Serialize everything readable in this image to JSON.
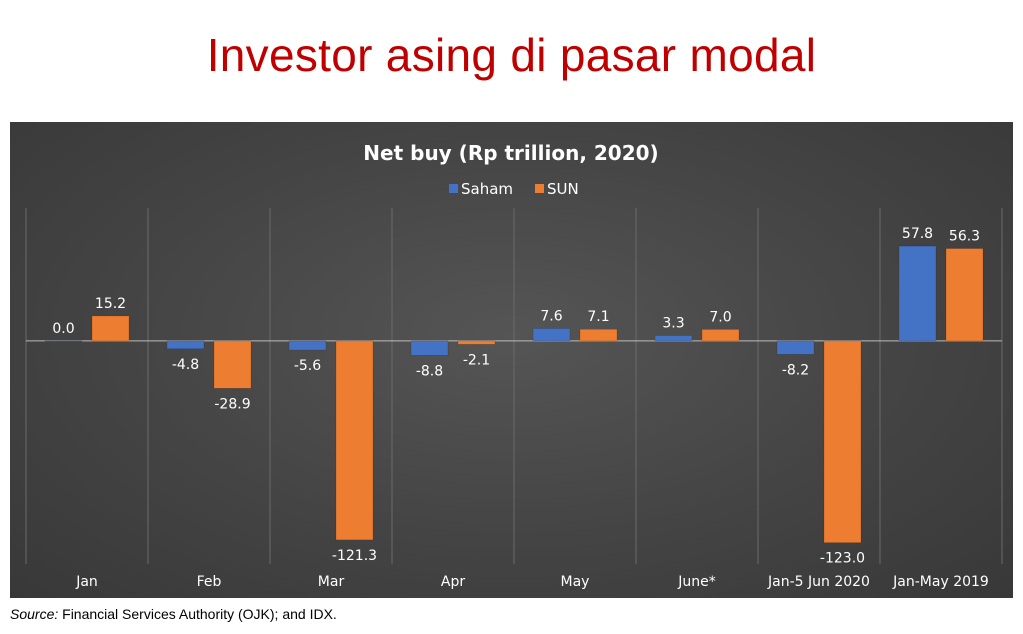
{
  "page": {
    "title": "Investor asing di pasar modal",
    "source_prefix": "Source:",
    "source_text": " Financial Services Authority (OJK); and IDX."
  },
  "chart_data": {
    "type": "bar",
    "title": "Net buy (Rp trillion, 2020)",
    "xlabel": "",
    "ylabel": "",
    "categories": [
      "Jan",
      "Feb",
      "Mar",
      "Apr",
      "May",
      "June*",
      "Jan-5 Jun 2020",
      "Jan-May 2019"
    ],
    "series": [
      {
        "name": "Saham",
        "color": "#4472c4",
        "values": [
          0.0,
          -4.8,
          -5.6,
          -8.8,
          7.6,
          3.3,
          -8.2,
          57.8
        ],
        "labels": [
          "0.0",
          "-4.8",
          "-5.6",
          "-8.8",
          "7.6",
          "3.3",
          "-8.2",
          "57.8"
        ]
      },
      {
        "name": "SUN",
        "color": "#ed7d31",
        "values": [
          15.2,
          -28.9,
          -121.3,
          -2.1,
          7.1,
          7.0,
          -123.0,
          56.3
        ],
        "labels": [
          "15.2",
          "-28.9",
          "-121.3",
          "-2.1",
          "7.1",
          "7.0",
          "-123.0",
          "56.3"
        ]
      }
    ],
    "ylim": [
      -136,
      81
    ],
    "grid": "vertical separators",
    "legend_position": "top"
  }
}
